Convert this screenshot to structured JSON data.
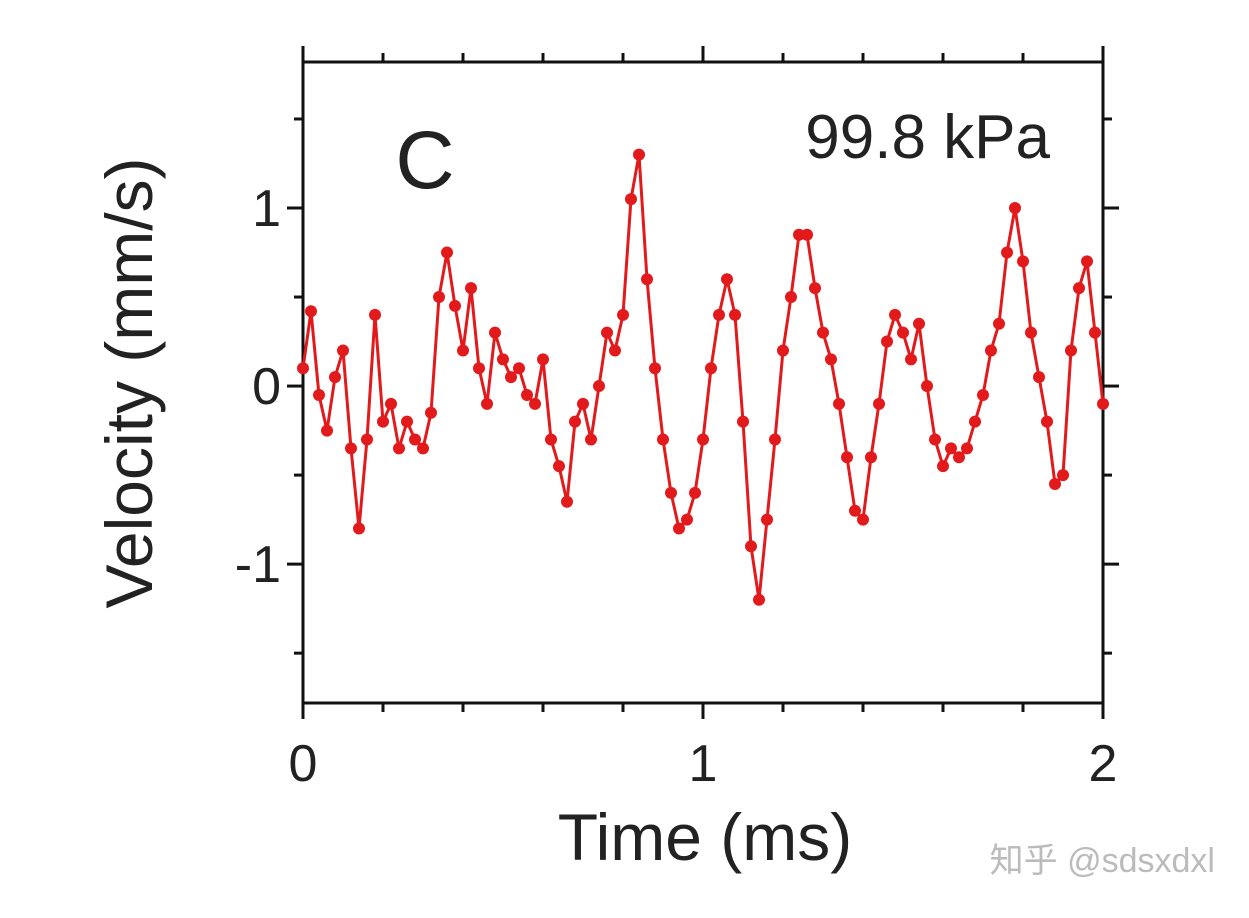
{
  "chart_data": {
    "type": "line",
    "xlabel": "Time (ms)",
    "ylabel": "Velocity (mm/s)",
    "annotations": [
      "C",
      "99.8 kPa"
    ],
    "watermark": "知乎 @sdsxdxl",
    "x": [
      0.0,
      0.02,
      0.04,
      0.06,
      0.08,
      0.1,
      0.12,
      0.14,
      0.16,
      0.18,
      0.2,
      0.22,
      0.24,
      0.26,
      0.28,
      0.3,
      0.32,
      0.34,
      0.36,
      0.38,
      0.4,
      0.42,
      0.44,
      0.46,
      0.48,
      0.5,
      0.52,
      0.54,
      0.56,
      0.58,
      0.6,
      0.62,
      0.64,
      0.66,
      0.68,
      0.7,
      0.72,
      0.74,
      0.76,
      0.78,
      0.8,
      0.82,
      0.84,
      0.86,
      0.88,
      0.9,
      0.92,
      0.94,
      0.96,
      0.98,
      1.0,
      1.02,
      1.04,
      1.06,
      1.08,
      1.1,
      1.12,
      1.14,
      1.16,
      1.18,
      1.2,
      1.22,
      1.24,
      1.26,
      1.28,
      1.3,
      1.32,
      1.34,
      1.36,
      1.38,
      1.4,
      1.42,
      1.44,
      1.46,
      1.48,
      1.5,
      1.52,
      1.54,
      1.56,
      1.58,
      1.6,
      1.62,
      1.64,
      1.66,
      1.68,
      1.7,
      1.72,
      1.74,
      1.76,
      1.78,
      1.8,
      1.82,
      1.84,
      1.86,
      1.88,
      1.9,
      1.92,
      1.94,
      1.96,
      1.98,
      2.0
    ],
    "series": [
      {
        "color": "#e31a1c",
        "values": [
          0.1,
          0.42,
          -0.05,
          -0.25,
          0.05,
          0.2,
          -0.35,
          -0.8,
          -0.3,
          0.4,
          -0.2,
          -0.1,
          -0.35,
          -0.2,
          -0.3,
          -0.35,
          -0.15,
          0.5,
          0.75,
          0.45,
          0.2,
          0.55,
          0.1,
          -0.1,
          0.3,
          0.15,
          0.05,
          0.1,
          -0.05,
          -0.1,
          0.15,
          -0.3,
          -0.45,
          -0.65,
          -0.2,
          -0.1,
          -0.3,
          0.0,
          0.3,
          0.2,
          0.4,
          1.05,
          1.3,
          0.6,
          0.1,
          -0.3,
          -0.6,
          -0.8,
          -0.75,
          -0.6,
          -0.3,
          0.1,
          0.4,
          0.6,
          0.4,
          -0.2,
          -0.9,
          -1.2,
          -0.75,
          -0.3,
          0.2,
          0.5,
          0.85,
          0.85,
          0.55,
          0.3,
          0.15,
          -0.1,
          -0.4,
          -0.7,
          -0.75,
          -0.4,
          -0.1,
          0.25,
          0.4,
          0.3,
          0.15,
          0.35,
          0.0,
          -0.3,
          -0.45,
          -0.35,
          -0.4,
          -0.35,
          -0.2,
          -0.05,
          0.2,
          0.35,
          0.75,
          1.0,
          0.7,
          0.3,
          0.05,
          -0.2,
          -0.55,
          -0.5,
          0.2,
          0.55,
          0.7,
          0.3,
          -0.1
        ]
      }
    ],
    "xlim": [
      0,
      2
    ],
    "ylim": [
      -1.78,
      1.82
    ],
    "xticks": [
      0,
      1,
      2
    ],
    "yticks": [
      -1,
      0,
      1
    ],
    "xminorticks": [
      0.2,
      0.4,
      0.6,
      0.8,
      1.2,
      1.4,
      1.6,
      1.8
    ],
    "yminorticks": [
      -1.5,
      -0.5,
      0.5,
      1.5
    ]
  }
}
